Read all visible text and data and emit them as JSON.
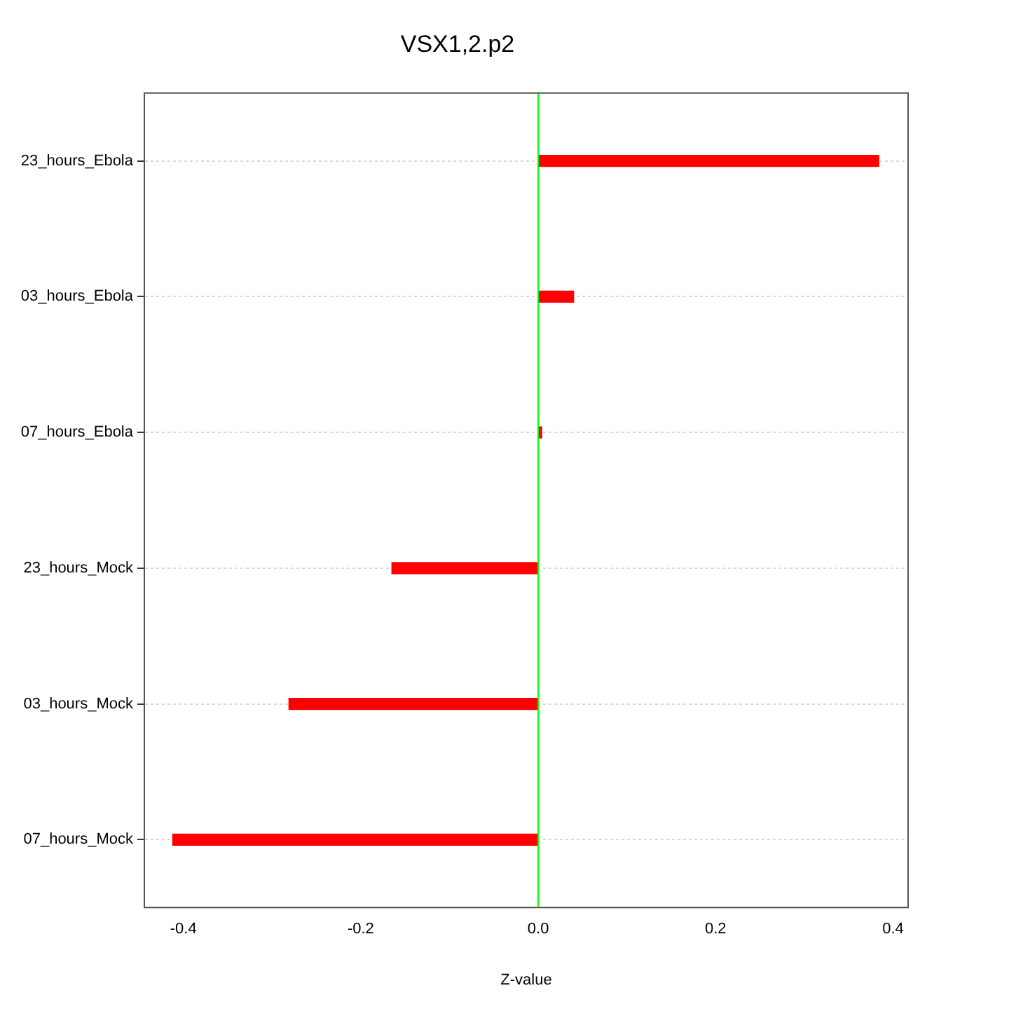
{
  "chart_data": {
    "type": "bar",
    "orientation": "horizontal",
    "title": "VSX1,2.p2",
    "xlabel": "Z-value",
    "categories": [
      "23_hours_Ebola",
      "03_hours_Ebola",
      "07_hours_Ebola",
      "23_hours_Mock",
      "03_hours_Mock",
      "07_hours_Mock"
    ],
    "series": [
      {
        "color": "#ff0000",
        "values": [
          0.384,
          0.04,
          0.004,
          -0.165,
          -0.281,
          -0.412
        ]
      }
    ],
    "xlim": [
      -0.444,
      0.417
    ],
    "xticks": [
      {
        "value": -0.4,
        "label": "-0.4"
      },
      {
        "value": -0.2,
        "label": "-0.2"
      },
      {
        "value": 0,
        "label": "0.0"
      },
      {
        "value": 0.2,
        "label": "0.2"
      },
      {
        "value": 0.4,
        "label": "0.4"
      }
    ],
    "ref_lines": [
      {
        "axis": "x",
        "value": 0,
        "color": "#00ff00"
      }
    ],
    "grid": "y",
    "legend": false
  }
}
